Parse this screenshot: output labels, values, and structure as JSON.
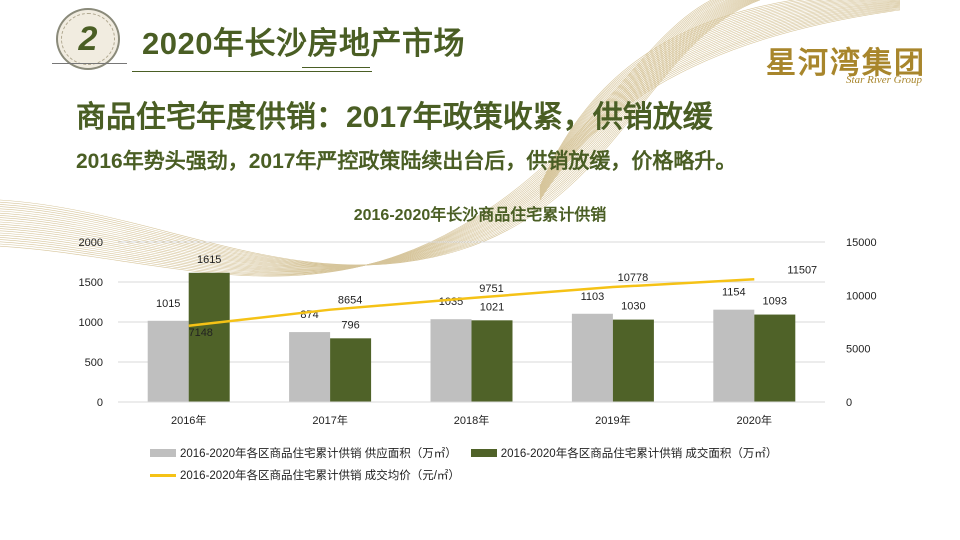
{
  "header": {
    "section_number": "2",
    "title": "2020年长沙房地产市场"
  },
  "logo": {
    "name_cn": "星河湾集团",
    "name_en": "Star River Group"
  },
  "headline": "商品住宅年度供销：2017年政策收紧，供销放缓",
  "subline": "2016年势头强劲，2017年严控政策陆续出台后，供销放缓，价格略升。",
  "colors": {
    "accent_green": "#4a5e24",
    "bar_gray": "#bfbfbf",
    "bar_green": "#4f6228",
    "line_yellow": "#f5c216",
    "gold": "#a8862c"
  },
  "chart_data": {
    "type": "bar",
    "title": "2016-2020年长沙商品住宅累计供销",
    "categories": [
      "2016年",
      "2017年",
      "2018年",
      "2019年",
      "2020年"
    ],
    "series": [
      {
        "name": "2016-2020年各区商品住宅累计供销 供应面积（万㎡）",
        "type": "bar",
        "axis": "left",
        "color": "#bfbfbf",
        "values": [
          1015,
          874,
          1035,
          1103,
          1154
        ]
      },
      {
        "name": "2016-2020年各区商品住宅累计供销 成交面积（万㎡）",
        "type": "bar",
        "axis": "left",
        "color": "#4f6228",
        "values": [
          1615,
          796,
          1021,
          1030,
          1093
        ]
      },
      {
        "name": "2016-2020年各区商品住宅累计供销 成交均价（元/㎡）",
        "type": "line",
        "axis": "right",
        "color": "#f5c216",
        "values": [
          7148,
          8654,
          9751,
          10778,
          11507
        ]
      }
    ],
    "left_axis": {
      "ylim": [
        0,
        2000
      ],
      "ticks": [
        "0",
        "500",
        "1000",
        "1500",
        "2000"
      ]
    },
    "right_axis": {
      "ylim": [
        0,
        15000
      ],
      "ticks": [
        "0",
        "5000",
        "10000",
        "15000"
      ]
    },
    "xlabel": "",
    "ylabel": "",
    "grid": true,
    "legend_position": "bottom"
  }
}
